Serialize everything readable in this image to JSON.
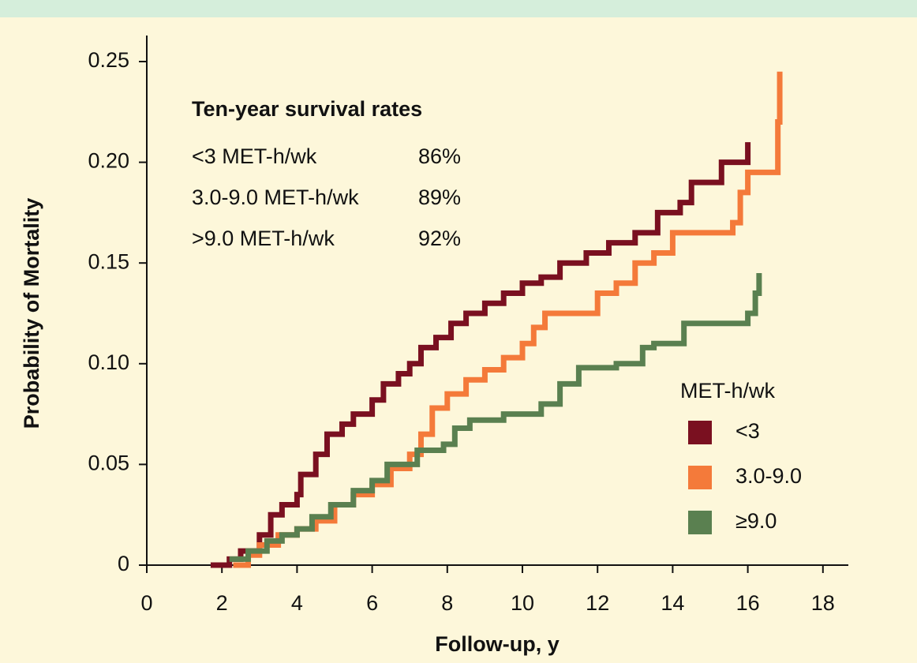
{
  "chart_data": {
    "type": "line",
    "step": "post",
    "xlabel": "Follow-up, y",
    "ylabel": "Probability of Mortality",
    "xlim": [
      0,
      18.7
    ],
    "ylim": [
      0,
      0.25
    ],
    "xticks": [
      0,
      2,
      4,
      6,
      8,
      10,
      12,
      14,
      16,
      18
    ],
    "yticks": [
      0,
      0.05,
      {
        "value": 0.1,
        "label": "0.10"
      },
      0.15,
      {
        "value": 0.2,
        "label": "0.20"
      },
      0.25
    ],
    "legend_title": "MET-h/wk",
    "annotation": {
      "title": "Ten-year survival rates",
      "rows": [
        [
          "<3 MET-h/wk",
          "86%"
        ],
        [
          "3.0-9.0 MET-h/wk",
          "89%"
        ],
        [
          ">9.0 MET-h/wk",
          "92%"
        ]
      ]
    },
    "series": [
      {
        "name": "<3",
        "color": "#7a1020",
        "x": [
          1.7,
          2.2,
          2.5,
          3,
          3.3,
          3.6,
          4,
          4.1,
          4.5,
          4.8,
          5.2,
          5.5,
          6,
          6.3,
          6.7,
          7,
          7.3,
          7.7,
          8.1,
          8.5,
          9,
          9.5,
          10,
          10.5,
          11,
          11.7,
          12.3,
          13,
          13.6,
          14.2,
          14.5,
          15.3,
          16,
          16
        ],
        "values": [
          0,
          0.003,
          0.007,
          0.015,
          0.025,
          0.03,
          0.035,
          0.045,
          0.055,
          0.065,
          0.07,
          0.075,
          0.082,
          0.09,
          0.095,
          0.1,
          0.108,
          0.113,
          0.12,
          0.125,
          0.13,
          0.135,
          0.14,
          0.143,
          0.15,
          0.155,
          0.16,
          0.165,
          0.175,
          0.18,
          0.19,
          0.2,
          0.2,
          0.21
        ]
      },
      {
        "name": "3.0-9.0",
        "color": "#f47a3a",
        "x": [
          2.3,
          2.7,
          3,
          3.5,
          4,
          4.5,
          5,
          5.5,
          6,
          6.5,
          7,
          7.3,
          7.6,
          8,
          8.5,
          9,
          9.5,
          10,
          10.3,
          10.6,
          11.5,
          12,
          12.5,
          13,
          13.5,
          14,
          15.6,
          15.8,
          16,
          16.8,
          16.85
        ],
        "values": [
          0,
          0.005,
          0.01,
          0.015,
          0.018,
          0.022,
          0.03,
          0.035,
          0.04,
          0.048,
          0.055,
          0.065,
          0.078,
          0.085,
          0.092,
          0.097,
          0.103,
          0.11,
          0.118,
          0.125,
          0.125,
          0.135,
          0.14,
          0.15,
          0.155,
          0.165,
          0.17,
          0.185,
          0.195,
          0.22,
          0.245
        ]
      },
      {
        "name": "≥9.0",
        "color": "#5a8050",
        "x": [
          2.2,
          2.7,
          3.2,
          3.6,
          4,
          4.4,
          4.9,
          5.5,
          6,
          6.4,
          7.2,
          7.9,
          8.2,
          8.6,
          9.5,
          10.5,
          11,
          11.5,
          12.5,
          13.2,
          13.5,
          14.3,
          16,
          16.2,
          16.3
        ],
        "values": [
          0.003,
          0.007,
          0.012,
          0.015,
          0.018,
          0.024,
          0.03,
          0.037,
          0.042,
          0.05,
          0.057,
          0.06,
          0.068,
          0.072,
          0.075,
          0.08,
          0.09,
          0.098,
          0.1,
          0.108,
          0.11,
          0.12,
          0.125,
          0.135,
          0.145
        ]
      }
    ]
  }
}
